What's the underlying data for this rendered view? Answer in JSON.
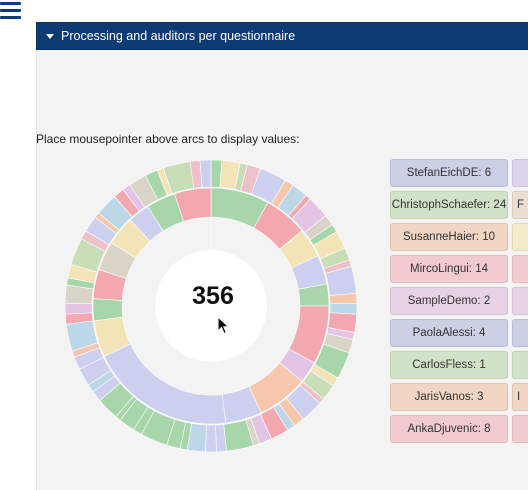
{
  "header": {
    "title": "Processing and auditors per questionnaire",
    "menu_icon": "hamburger-menu-icon",
    "toggle_icon": "caret-down-icon"
  },
  "instructions": "Place mousepointer above arcs to display values:",
  "center_value": "356",
  "colors": {
    "header_bg": "#0c3a72",
    "inner_ring": "#a7d6aa",
    "panel_bg": "#f3f3f3"
  },
  "legend": [
    {
      "label": "StefanEichDE: 6",
      "color": "#ccd0e6"
    },
    {
      "label": "ChristophSchaefer: 24",
      "color": "#d2e2c9"
    },
    {
      "label": "SusanneHaier: 10",
      "color": "#f0d6c3"
    },
    {
      "label": "MircoLingui: 14",
      "color": "#f1cbcf"
    },
    {
      "label": "SampleDemo: 2",
      "color": "#e7d2e6"
    },
    {
      "label": "PaolaAlessi: 4",
      "color": "#ccd0e6"
    },
    {
      "label": "CarlosFless: 1",
      "color": "#d2e2c9"
    },
    {
      "label": "JarisVanos: 3",
      "color": "#f0d6c3"
    },
    {
      "label": "AnkaDjuvenic: 8",
      "color": "#f1cbcf"
    }
  ],
  "legend_col2": [
    {
      "label": "",
      "color": "#dcd4ea"
    },
    {
      "label": "F",
      "color": "#eadfcf"
    },
    {
      "label": "",
      "color": "#f3ecc9"
    },
    {
      "label": "",
      "color": "#f1cbcf"
    },
    {
      "label": "",
      "color": "#e7d2e6"
    },
    {
      "label": "",
      "color": "#ccd0e6"
    },
    {
      "label": "",
      "color": "#d2e2c9"
    },
    {
      "label": "I",
      "color": "#f0d6c3"
    },
    {
      "label": "",
      "color": "#f1cbcf"
    }
  ]
}
